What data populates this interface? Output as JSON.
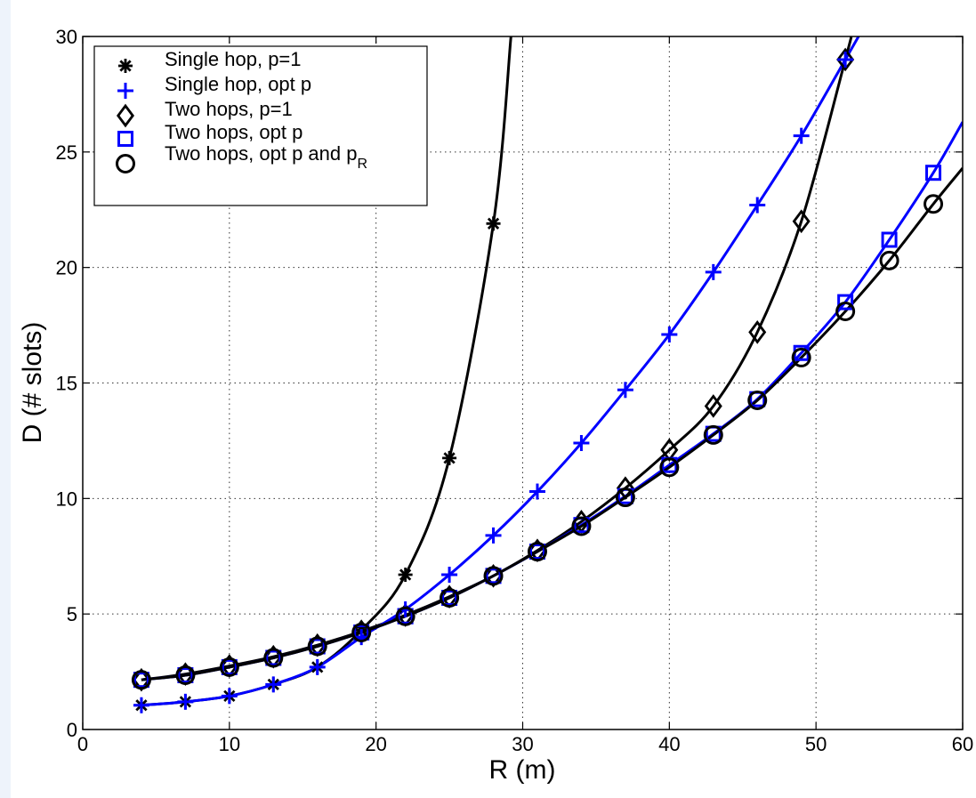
{
  "chart_data": {
    "type": "line",
    "xlabel": "R (m)",
    "ylabel": "D (# slots)",
    "xlim": [
      0,
      60
    ],
    "ylim": [
      0,
      30
    ],
    "xticks": [
      "0",
      "10",
      "20",
      "30",
      "40",
      "50",
      "60"
    ],
    "yticks": [
      "0",
      "5",
      "10",
      "15",
      "20",
      "25",
      "30"
    ],
    "grid": true,
    "legend_position": "top-left",
    "series": [
      {
        "name": "Single hop, p=1",
        "color": "#000000",
        "marker": "asterisk",
        "x": [
          4,
          7,
          10,
          13,
          16,
          19,
          22,
          25,
          28
        ],
        "y": [
          1.05,
          1.2,
          1.45,
          1.95,
          2.7,
          4.3,
          6.7,
          11.75,
          21.9
        ],
        "curve": [
          [
            4,
            1.05
          ],
          [
            7,
            1.2
          ],
          [
            10,
            1.45
          ],
          [
            13,
            1.95
          ],
          [
            16,
            2.7
          ],
          [
            19,
            4.3
          ],
          [
            22,
            6.7
          ],
          [
            25,
            11.75
          ],
          [
            28,
            21.9
          ],
          [
            29.2,
            30
          ]
        ]
      },
      {
        "name": "Single hop, opt p",
        "color": "#0000ff",
        "marker": "plus",
        "x": [
          4,
          7,
          10,
          13,
          16,
          19,
          22,
          25,
          28,
          31,
          34,
          37,
          40,
          43,
          46,
          49,
          52
        ],
        "y": [
          1.05,
          1.2,
          1.45,
          1.95,
          2.7,
          4.0,
          5.2,
          6.7,
          8.4,
          10.3,
          12.4,
          14.7,
          17.1,
          19.8,
          22.7,
          25.7,
          29.0
        ],
        "curve": [
          [
            4,
            1.05
          ],
          [
            7,
            1.2
          ],
          [
            10,
            1.45
          ],
          [
            13,
            1.95
          ],
          [
            16,
            2.7
          ],
          [
            19,
            4.0
          ],
          [
            22,
            5.2
          ],
          [
            25,
            6.7
          ],
          [
            28,
            8.4
          ],
          [
            31,
            10.3
          ],
          [
            34,
            12.4
          ],
          [
            37,
            14.7
          ],
          [
            40,
            17.1
          ],
          [
            43,
            19.8
          ],
          [
            46,
            22.7
          ],
          [
            49,
            25.7
          ],
          [
            52,
            29.0
          ],
          [
            52.9,
            30
          ]
        ]
      },
      {
        "name": "Two hops, p=1",
        "color": "#000000",
        "marker": "diamond",
        "x": [
          4,
          7,
          10,
          13,
          16,
          19,
          22,
          25,
          28,
          31,
          34,
          37,
          40,
          43,
          46,
          49,
          52
        ],
        "y": [
          2.15,
          2.4,
          2.75,
          3.15,
          3.65,
          4.25,
          4.95,
          5.75,
          6.65,
          7.75,
          9.0,
          10.45,
          12.1,
          14.0,
          17.2,
          22.0,
          29.0
        ],
        "curve": [
          [
            4,
            2.15
          ],
          [
            7,
            2.4
          ],
          [
            10,
            2.75
          ],
          [
            13,
            3.15
          ],
          [
            16,
            3.65
          ],
          [
            19,
            4.25
          ],
          [
            22,
            4.95
          ],
          [
            25,
            5.75
          ],
          [
            28,
            6.65
          ],
          [
            31,
            7.75
          ],
          [
            34,
            9.0
          ],
          [
            37,
            10.45
          ],
          [
            40,
            12.1
          ],
          [
            43,
            14.0
          ],
          [
            46,
            17.2
          ],
          [
            49,
            22.0
          ],
          [
            52,
            29.0
          ],
          [
            52.4,
            30
          ]
        ]
      },
      {
        "name": "Two hops, opt p",
        "color": "#0000ff",
        "marker": "square",
        "x": [
          4,
          7,
          10,
          13,
          16,
          19,
          22,
          25,
          28,
          31,
          34,
          37,
          40,
          43,
          46,
          49,
          52,
          55,
          58
        ],
        "y": [
          2.15,
          2.35,
          2.7,
          3.1,
          3.6,
          4.2,
          4.9,
          5.7,
          6.65,
          7.7,
          8.85,
          10.1,
          11.45,
          12.8,
          14.3,
          16.3,
          18.5,
          21.2,
          24.1
        ],
        "curve": [
          [
            4,
            2.15
          ],
          [
            7,
            2.35
          ],
          [
            10,
            2.7
          ],
          [
            13,
            3.1
          ],
          [
            16,
            3.6
          ],
          [
            19,
            4.2
          ],
          [
            22,
            4.9
          ],
          [
            25,
            5.7
          ],
          [
            28,
            6.65
          ],
          [
            31,
            7.7
          ],
          [
            34,
            8.85
          ],
          [
            37,
            10.1
          ],
          [
            40,
            11.45
          ],
          [
            43,
            12.8
          ],
          [
            46,
            14.3
          ],
          [
            49,
            16.3
          ],
          [
            52,
            18.5
          ],
          [
            55,
            21.2
          ],
          [
            58,
            24.1
          ],
          [
            60,
            26.3
          ]
        ]
      },
      {
        "name": "Two hops, opt p and p",
        "name_sub": "R",
        "color": "#000000",
        "marker": "circle",
        "x": [
          4,
          7,
          10,
          13,
          16,
          19,
          22,
          25,
          28,
          31,
          34,
          37,
          40,
          43,
          46,
          49,
          52,
          55,
          58
        ],
        "y": [
          2.15,
          2.35,
          2.7,
          3.1,
          3.6,
          4.2,
          4.9,
          5.7,
          6.65,
          7.7,
          8.8,
          10.05,
          11.35,
          12.75,
          14.25,
          16.1,
          18.1,
          20.3,
          22.75
        ],
        "curve": [
          [
            4,
            2.15
          ],
          [
            7,
            2.35
          ],
          [
            10,
            2.7
          ],
          [
            13,
            3.1
          ],
          [
            16,
            3.6
          ],
          [
            19,
            4.2
          ],
          [
            22,
            4.9
          ],
          [
            25,
            5.7
          ],
          [
            28,
            6.65
          ],
          [
            31,
            7.7
          ],
          [
            34,
            8.8
          ],
          [
            37,
            10.05
          ],
          [
            40,
            11.35
          ],
          [
            43,
            12.75
          ],
          [
            46,
            14.25
          ],
          [
            49,
            16.1
          ],
          [
            52,
            18.1
          ],
          [
            55,
            20.3
          ],
          [
            58,
            22.75
          ],
          [
            60,
            24.3
          ]
        ]
      }
    ]
  }
}
